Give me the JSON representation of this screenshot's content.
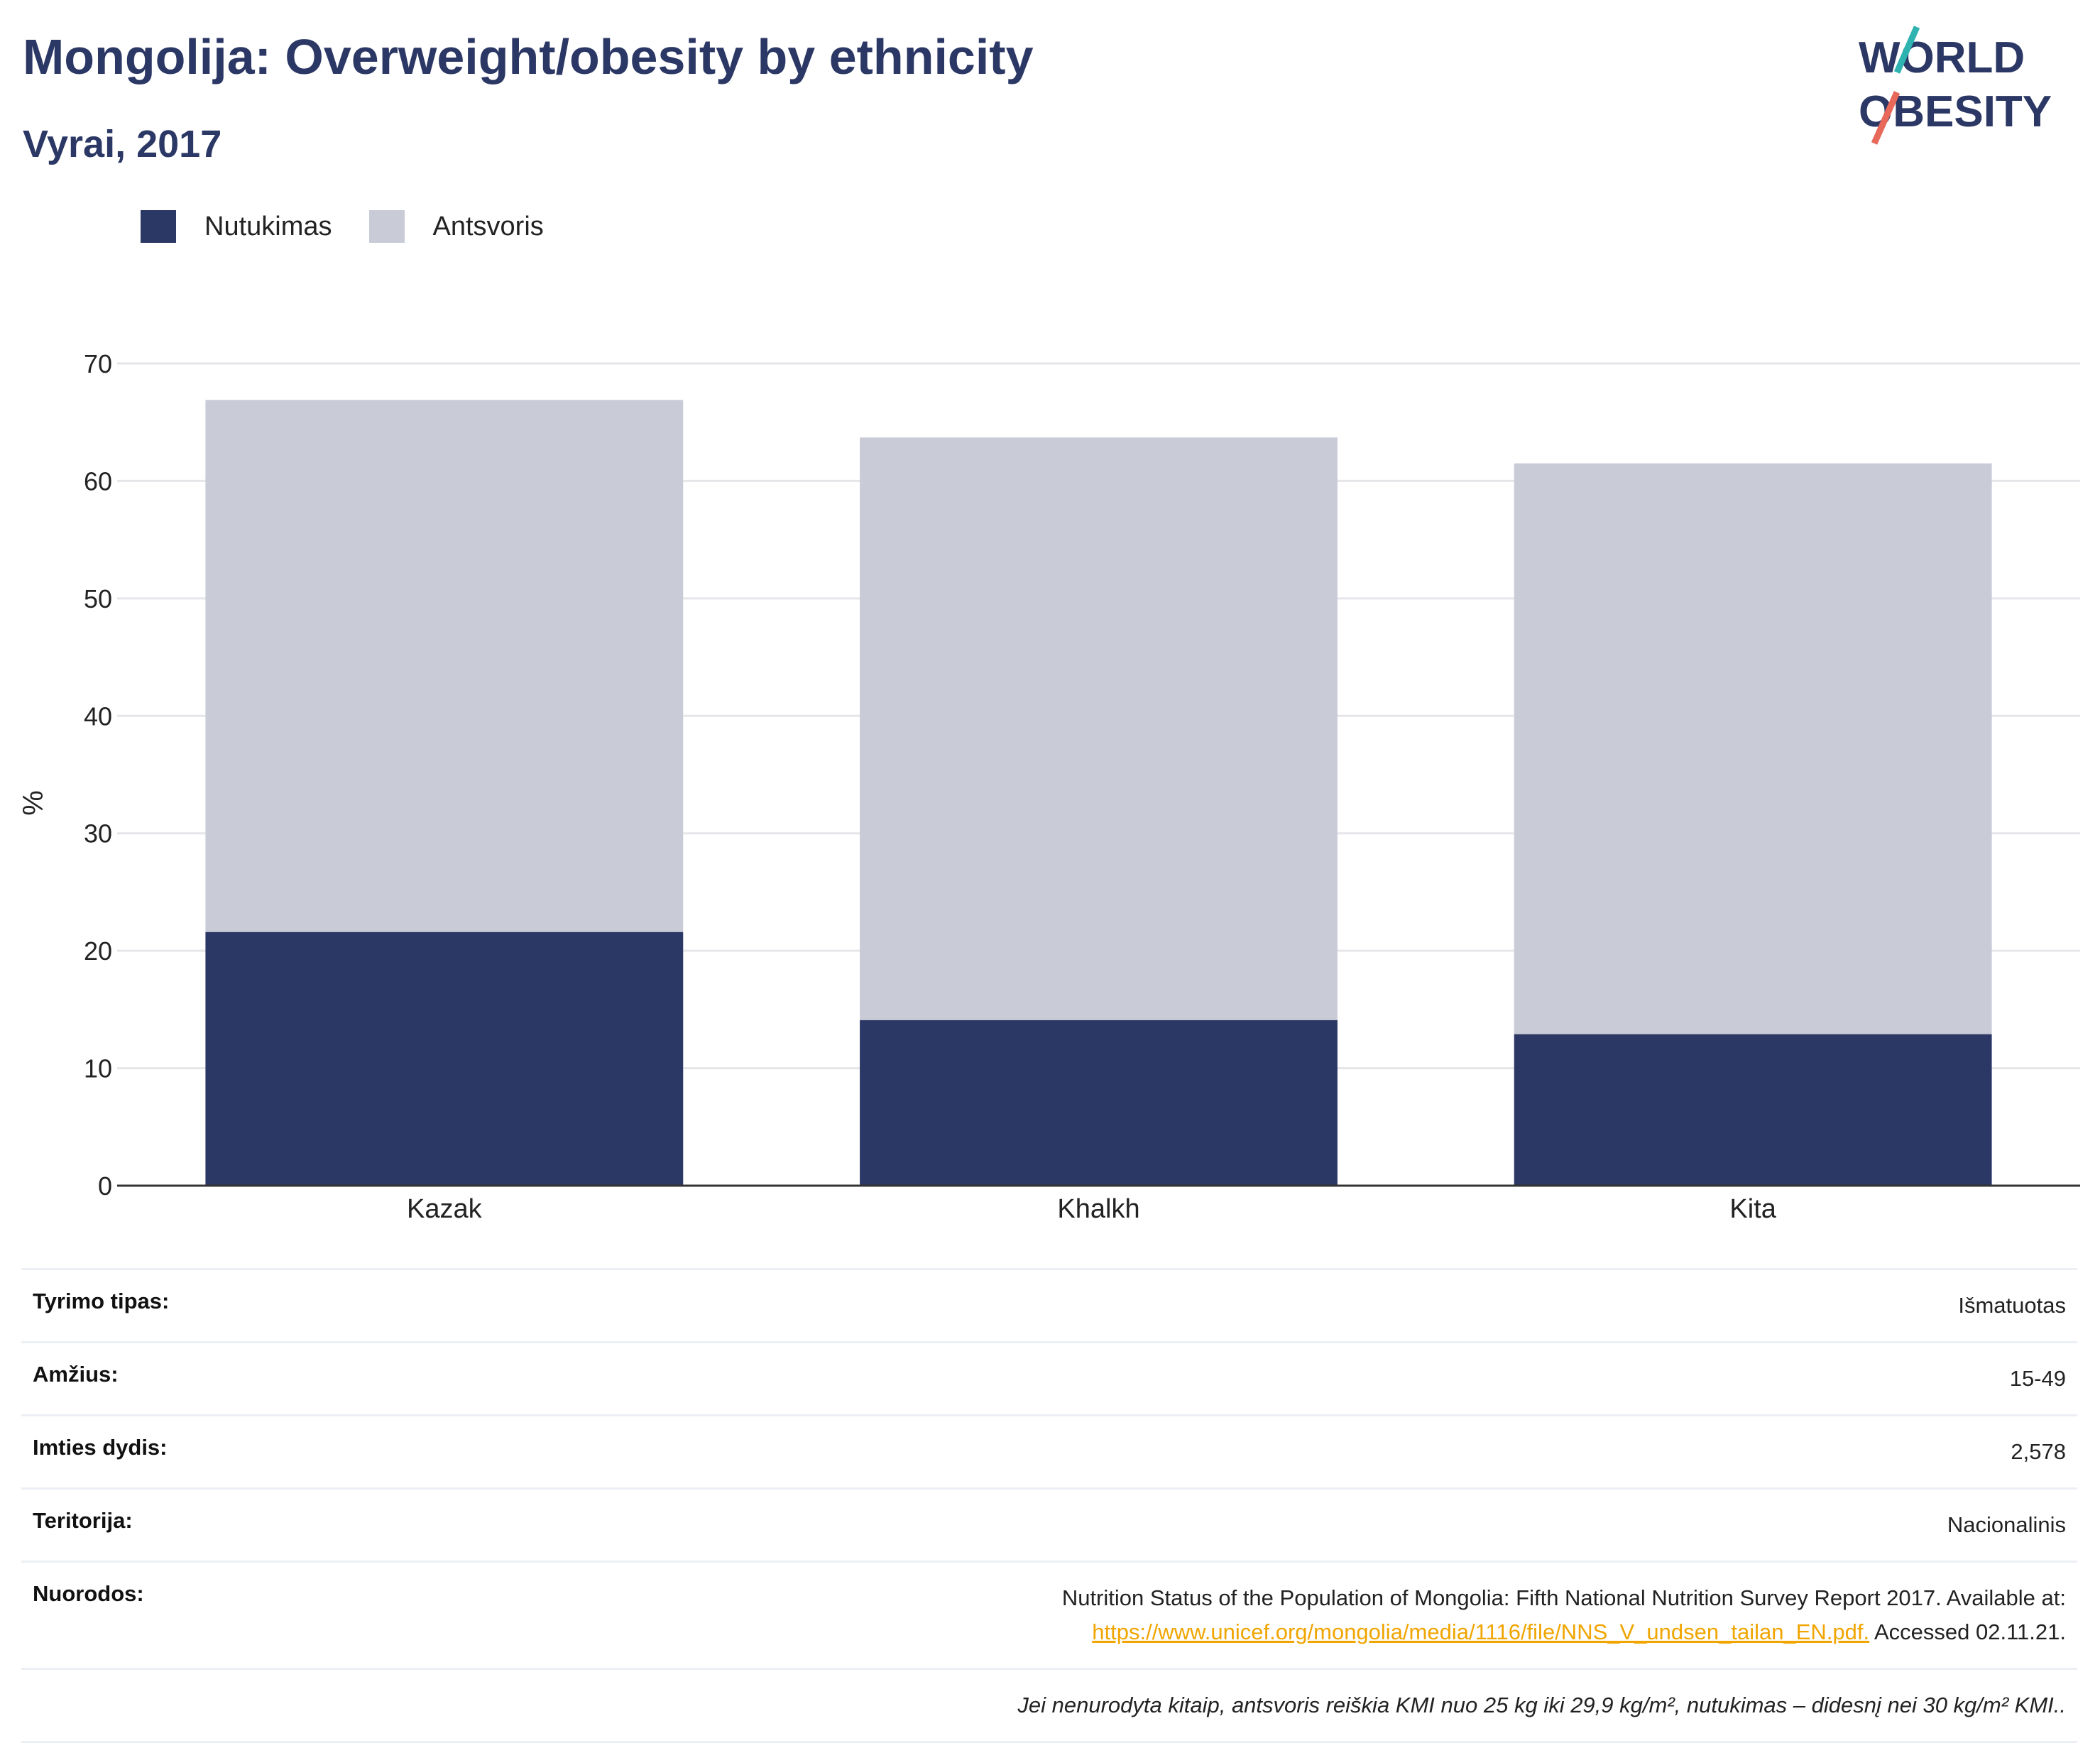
{
  "header": {
    "title": "Mongolija: Overweight/obesity by ethnicity",
    "subtitle": "Vyrai, 2017"
  },
  "logo": {
    "line1": "WORLD",
    "line2": "OBESITY"
  },
  "colors": {
    "obesity": "#2b3764",
    "overweight": "#c9cbd7",
    "brand_teal": "#2fb3b0",
    "brand_coral": "#e8685a",
    "link": "#f0a500"
  },
  "legend": [
    {
      "label": "Nutukimas",
      "color": "#2b3764"
    },
    {
      "label": "Antsvoris",
      "color": "#c9cbd7"
    }
  ],
  "chart_data": {
    "type": "bar",
    "stacked": true,
    "categories": [
      "Kazak",
      "Khalkh",
      "Kita"
    ],
    "series": [
      {
        "name": "Nutukimas",
        "values": [
          21.6,
          14.1,
          12.9
        ]
      },
      {
        "name": "Antsvoris",
        "values": [
          45.3,
          49.6,
          48.6
        ]
      }
    ],
    "ylabel": "%",
    "ylim": [
      0,
      70
    ],
    "yticks": [
      0,
      10,
      20,
      30,
      40,
      50,
      60,
      70
    ],
    "grid": true
  },
  "info": {
    "survey_type_label": "Tyrimo tipas:",
    "survey_type_value": "Išmatuotas",
    "age_label": "Amžius:",
    "age_value": "15-49",
    "sample_label": "Imties dydis:",
    "sample_value": "2,578",
    "area_label": "Teritorija:",
    "area_value": "Nacionalinis",
    "refs_label": "Nuorodos:",
    "refs_text": "Nutrition Status of the Population of Mongolia: Fifth National Nutrition Survey Report 2017. Available at:",
    "refs_link": "https://www.unicef.org/mongolia/media/1116/file/NNS_V_undsen_tailan_EN.pdf.",
    "refs_accessed": " Accessed 02.11.21.",
    "note": "Jei nenurodyta kitaip, antsvoris reiškia KMI nuo 25 kg iki 29,9 kg/m², nutukimas – didesnį nei 30 kg/m² KMI.."
  }
}
